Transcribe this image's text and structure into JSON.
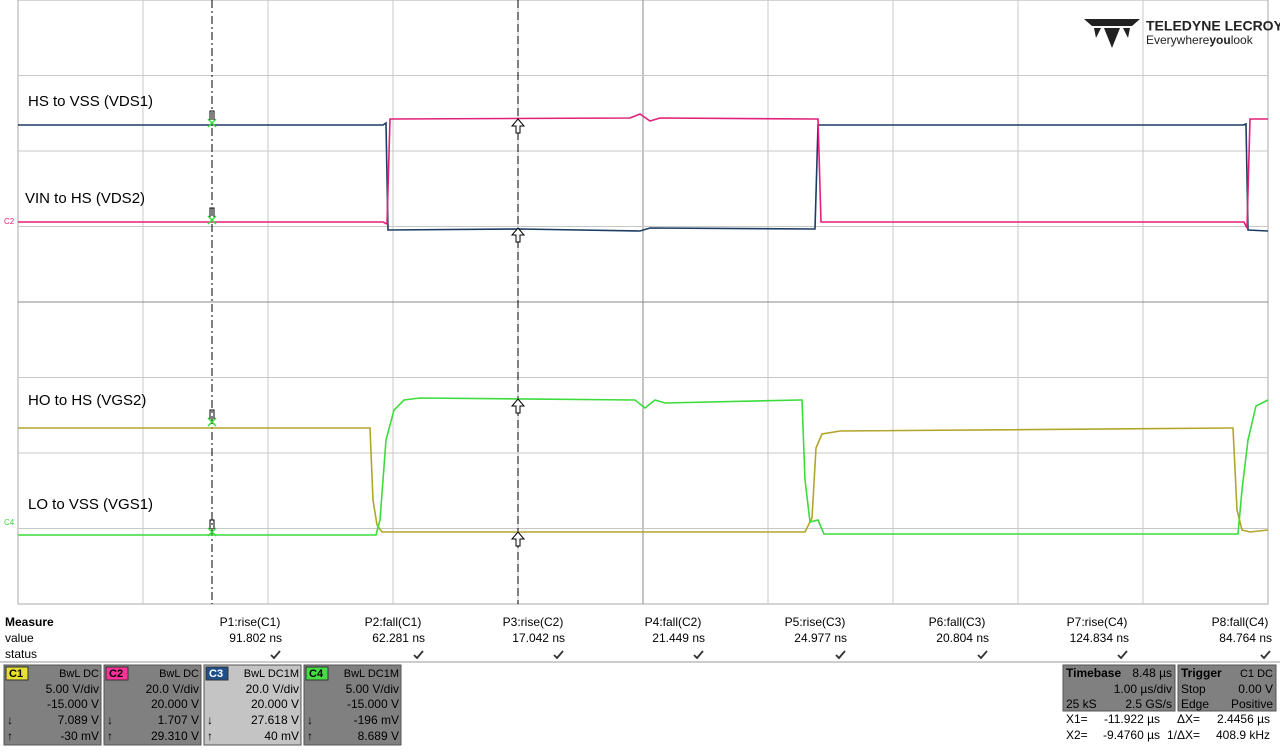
{
  "logo": {
    "brand": "TELEDYNE LECROY",
    "tagline_1": "Everywhere",
    "tagline_2": "you",
    "tagline_3": "look"
  },
  "traces": [
    {
      "label": "HS to VSS (VDS1)"
    },
    {
      "label": "VIN to HS (VDS2)"
    },
    {
      "label": "HO to HS (VGS2)"
    },
    {
      "label": "LO to VSS (VGS1)"
    }
  ],
  "channel_markers": [
    "C2",
    "C4"
  ],
  "measure": {
    "title": "Measure",
    "row_labels": [
      "value",
      "status"
    ],
    "params": [
      {
        "name": "P1:rise(C1)",
        "value": "91.802 ns"
      },
      {
        "name": "P2:fall(C1)",
        "value": "62.281 ns"
      },
      {
        "name": "P3:rise(C2)",
        "value": "17.042 ns"
      },
      {
        "name": "P4:fall(C2)",
        "value": "21.449 ns"
      },
      {
        "name": "P5:rise(C3)",
        "value": "24.977 ns"
      },
      {
        "name": "P6:fall(C3)",
        "value": "20.804 ns"
      },
      {
        "name": "P7:rise(C4)",
        "value": "124.834 ns"
      },
      {
        "name": "P8:fall(C4)",
        "value": "84.764 ns"
      }
    ]
  },
  "channels": [
    {
      "name": "C1",
      "coupling": "BwL DC",
      "scale": "5.00 V/div",
      "offset": "-15.000 V",
      "min_symbol": "↓",
      "min": "7.089 V",
      "max_symbol": "↑",
      "max": "-30 mV"
    },
    {
      "name": "C2",
      "coupling": "BwL DC",
      "scale": "20.0 V/div",
      "offset": "20.000 V",
      "min_symbol": "↓",
      "min": "1.707 V",
      "max_symbol": "↑",
      "max": "29.310 V"
    },
    {
      "name": "C3",
      "coupling": "BwL DC1M",
      "scale": "20.0 V/div",
      "offset": "20.000 V",
      "min_symbol": "↓",
      "min": "27.618 V",
      "max_symbol": "↑",
      "max": "40 mV"
    },
    {
      "name": "C4",
      "coupling": "BwL DC1M",
      "scale": "5.00 V/div",
      "offset": "-15.000 V",
      "min_symbol": "↓",
      "min": "-196 mV",
      "max_symbol": "↑",
      "max": "8.689 V"
    }
  ],
  "timebase": {
    "title": "Timebase",
    "delay": "8.48 µs",
    "scale": "1.00 µs/div",
    "samples": "25 kS",
    "rate": "2.5 GS/s"
  },
  "trigger": {
    "title": "Trigger",
    "source": "C1 DC",
    "mode": "Stop",
    "level": "0.00 V",
    "type": "Edge",
    "slope": "Positive"
  },
  "cursors": [
    {
      "label": "X1=",
      "value": "-11.922 µs",
      "delta_label": "ΔX=",
      "delta": "2.4456 µs"
    },
    {
      "label": "X2=",
      "value": "-9.4760 µs",
      "delta_label": "1/ΔX=",
      "delta": "408.9 kHz"
    }
  ]
}
